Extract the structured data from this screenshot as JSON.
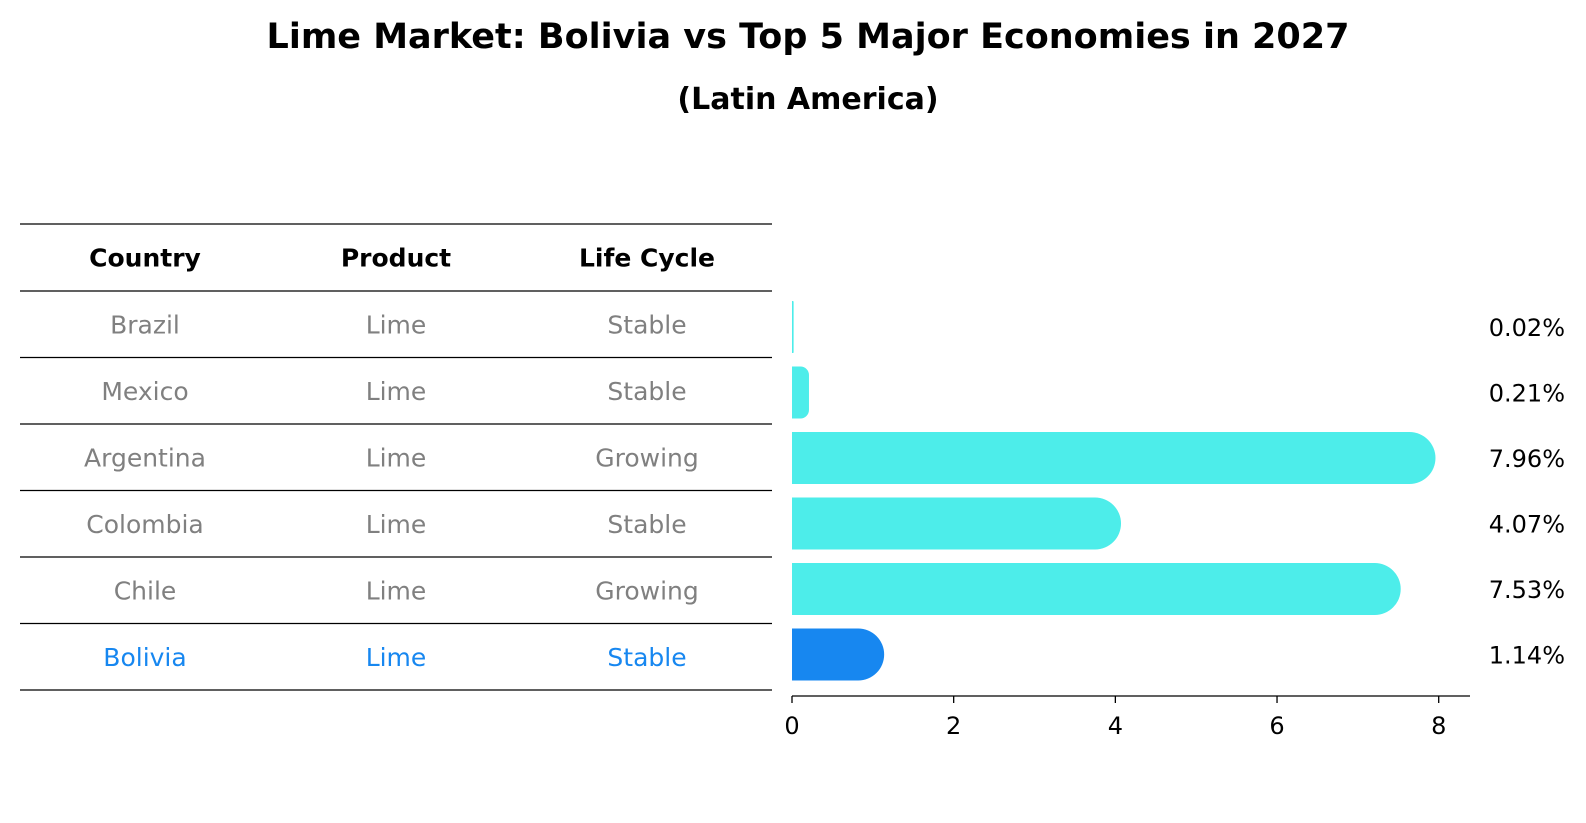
{
  "colors": {
    "bar": "#4DEDEA",
    "highlight": "#1787F0",
    "muted_text": "#808080",
    "text": "#000000",
    "rule": "#000000"
  },
  "chart_data": {
    "type": "bar",
    "orientation": "horizontal",
    "title": "Lime Market: Bolivia vs Top 5 Major Economies in 2027",
    "subtitle": "(Latin America)",
    "table": {
      "columns": [
        "Country",
        "Product",
        "Life Cycle"
      ],
      "rows": [
        [
          "Brazil",
          "Lime",
          "Stable"
        ],
        [
          "Mexico",
          "Lime",
          "Stable"
        ],
        [
          "Argentina",
          "Lime",
          "Growing"
        ],
        [
          "Colombia",
          "Lime",
          "Stable"
        ],
        [
          "Chile",
          "Lime",
          "Growing"
        ],
        [
          "Bolivia",
          "Lime",
          "Stable"
        ]
      ],
      "highlight_row": 5
    },
    "categories": [
      "Brazil",
      "Mexico",
      "Argentina",
      "Colombia",
      "Chile",
      "Bolivia"
    ],
    "values": [
      0.02,
      0.21,
      7.96,
      4.07,
      7.53,
      1.14
    ],
    "value_labels": [
      "0.02%",
      "0.21%",
      "7.96%",
      "4.07%",
      "7.53%",
      "1.14%"
    ],
    "xlim": [
      0,
      8.35
    ],
    "xticks": [
      0,
      2,
      4,
      6,
      8
    ],
    "grid": false
  }
}
